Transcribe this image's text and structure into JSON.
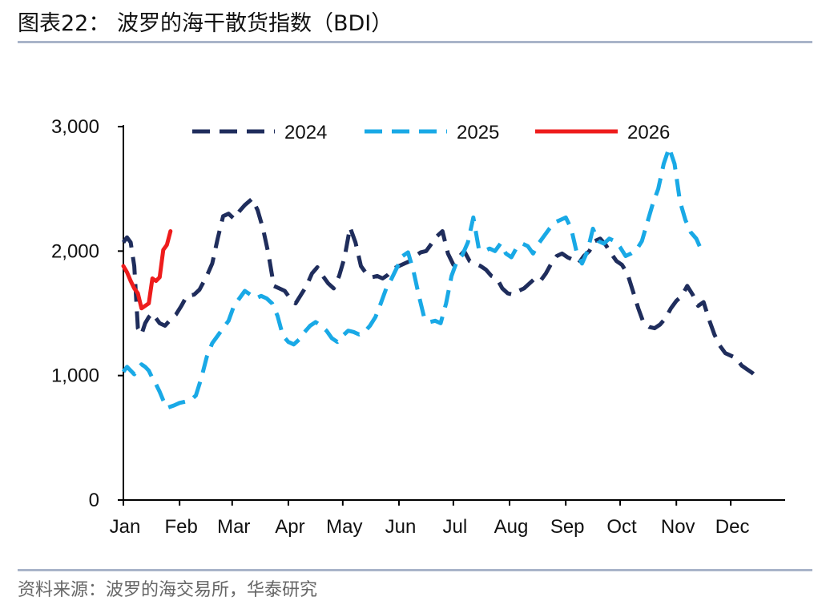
{
  "header": {
    "title": "图表22：  波罗的海干散货指数（BDI）"
  },
  "footer": {
    "source": "资料来源：波罗的海交易所，华泰研究"
  },
  "chart_data": {
    "type": "line",
    "xlabel": "",
    "ylabel": "",
    "ylim": [
      0,
      3000
    ],
    "y_ticks": [
      "0",
      "1,000",
      "2,000",
      "3,000"
    ],
    "y_tick_values": [
      0,
      1000,
      2000,
      3000
    ],
    "x_ticks": [
      "Jan",
      "Feb",
      "Mar",
      "Apr",
      "May",
      "Jun",
      "Jul",
      "Aug",
      "Sep",
      "Oct",
      "Nov",
      "Dec"
    ],
    "x_tick_days": [
      1,
      32,
      61,
      92,
      122,
      153,
      183,
      214,
      245,
      275,
      306,
      336
    ],
    "xlim_day": [
      1,
      366
    ],
    "legend_position": "top",
    "grid": false,
    "series": [
      {
        "name": "2024",
        "color": "#1f2d5c",
        "dash": "dashed",
        "points": [
          [
            1,
            2070
          ],
          [
            3,
            2110
          ],
          [
            5,
            2070
          ],
          [
            7,
            1880
          ],
          [
            9,
            1380
          ],
          [
            11,
            1330
          ],
          [
            13,
            1420
          ],
          [
            15,
            1470
          ],
          [
            17,
            1500
          ],
          [
            19,
            1460
          ],
          [
            21,
            1420
          ],
          [
            24,
            1400
          ],
          [
            27,
            1450
          ],
          [
            30,
            1490
          ],
          [
            33,
            1560
          ],
          [
            36,
            1640
          ],
          [
            40,
            1650
          ],
          [
            43,
            1690
          ],
          [
            47,
            1800
          ],
          [
            50,
            1900
          ],
          [
            53,
            2100
          ],
          [
            56,
            2280
          ],
          [
            59,
            2300
          ],
          [
            62,
            2260
          ],
          [
            65,
            2320
          ],
          [
            68,
            2370
          ],
          [
            72,
            2420
          ],
          [
            75,
            2330
          ],
          [
            78,
            2180
          ],
          [
            81,
            1980
          ],
          [
            84,
            1720
          ],
          [
            87,
            1700
          ],
          [
            90,
            1680
          ],
          [
            93,
            1620
          ],
          [
            96,
            1580
          ],
          [
            99,
            1650
          ],
          [
            102,
            1720
          ],
          [
            105,
            1820
          ],
          [
            108,
            1870
          ],
          [
            111,
            1800
          ],
          [
            114,
            1740
          ],
          [
            117,
            1700
          ],
          [
            120,
            1800
          ],
          [
            123,
            1950
          ],
          [
            126,
            2190
          ],
          [
            129,
            2070
          ],
          [
            132,
            1880
          ],
          [
            135,
            1820
          ],
          [
            138,
            1790
          ],
          [
            141,
            1800
          ],
          [
            144,
            1780
          ],
          [
            147,
            1810
          ],
          [
            150,
            1860
          ],
          [
            153,
            1880
          ],
          [
            156,
            1900
          ],
          [
            159,
            1920
          ],
          [
            162,
            1960
          ],
          [
            165,
            1990
          ],
          [
            168,
            2000
          ],
          [
            171,
            2060
          ],
          [
            174,
            2120
          ],
          [
            177,
            2160
          ],
          [
            180,
            1980
          ],
          [
            183,
            1890
          ],
          [
            186,
            1950
          ],
          [
            189,
            2000
          ],
          [
            192,
            1920
          ],
          [
            195,
            1900
          ],
          [
            198,
            1880
          ],
          [
            201,
            1850
          ],
          [
            204,
            1800
          ],
          [
            207,
            1780
          ],
          [
            210,
            1700
          ],
          [
            213,
            1660
          ],
          [
            216,
            1650
          ],
          [
            219,
            1680
          ],
          [
            222,
            1700
          ],
          [
            225,
            1740
          ],
          [
            228,
            1780
          ],
          [
            231,
            1760
          ],
          [
            234,
            1820
          ],
          [
            237,
            1900
          ],
          [
            240,
            1960
          ],
          [
            243,
            1980
          ],
          [
            246,
            1950
          ],
          [
            249,
            1930
          ],
          [
            252,
            1900
          ],
          [
            255,
            1960
          ],
          [
            258,
            2000
          ],
          [
            261,
            2080
          ],
          [
            264,
            2100
          ],
          [
            267,
            2050
          ],
          [
            270,
            1980
          ],
          [
            273,
            1920
          ],
          [
            276,
            1890
          ],
          [
            279,
            1820
          ],
          [
            282,
            1680
          ],
          [
            285,
            1540
          ],
          [
            288,
            1420
          ],
          [
            291,
            1390
          ],
          [
            294,
            1380
          ],
          [
            297,
            1410
          ],
          [
            300,
            1460
          ],
          [
            303,
            1540
          ],
          [
            306,
            1600
          ],
          [
            309,
            1640
          ],
          [
            312,
            1720
          ],
          [
            315,
            1650
          ],
          [
            318,
            1560
          ],
          [
            321,
            1590
          ],
          [
            324,
            1450
          ],
          [
            327,
            1330
          ],
          [
            330,
            1240
          ],
          [
            333,
            1180
          ],
          [
            336,
            1160
          ],
          [
            339,
            1140
          ],
          [
            342,
            1080
          ],
          [
            345,
            1050
          ],
          [
            348,
            1020
          ],
          [
            351,
            980
          ]
        ]
      },
      {
        "name": "2025",
        "color": "#19a9e6",
        "dash": "dashed",
        "points": [
          [
            1,
            1030
          ],
          [
            3,
            1070
          ],
          [
            5,
            1040
          ],
          [
            7,
            1010
          ],
          [
            9,
            1060
          ],
          [
            11,
            1090
          ],
          [
            13,
            1070
          ],
          [
            15,
            1040
          ],
          [
            17,
            980
          ],
          [
            19,
            930
          ],
          [
            21,
            870
          ],
          [
            23,
            800
          ],
          [
            25,
            740
          ],
          [
            27,
            750
          ],
          [
            29,
            760
          ],
          [
            32,
            780
          ],
          [
            35,
            790
          ],
          [
            38,
            800
          ],
          [
            41,
            840
          ],
          [
            44,
            980
          ],
          [
            47,
            1150
          ],
          [
            50,
            1260
          ],
          [
            53,
            1320
          ],
          [
            56,
            1380
          ],
          [
            59,
            1440
          ],
          [
            62,
            1560
          ],
          [
            65,
            1620
          ],
          [
            68,
            1680
          ],
          [
            71,
            1650
          ],
          [
            74,
            1620
          ],
          [
            77,
            1640
          ],
          [
            80,
            1620
          ],
          [
            83,
            1580
          ],
          [
            86,
            1480
          ],
          [
            89,
            1320
          ],
          [
            92,
            1270
          ],
          [
            95,
            1250
          ],
          [
            98,
            1290
          ],
          [
            101,
            1350
          ],
          [
            104,
            1400
          ],
          [
            107,
            1430
          ],
          [
            110,
            1400
          ],
          [
            113,
            1360
          ],
          [
            116,
            1300
          ],
          [
            119,
            1270
          ],
          [
            122,
            1320
          ],
          [
            125,
            1360
          ],
          [
            128,
            1350
          ],
          [
            131,
            1330
          ],
          [
            134,
            1350
          ],
          [
            137,
            1400
          ],
          [
            140,
            1470
          ],
          [
            143,
            1580
          ],
          [
            146,
            1700
          ],
          [
            149,
            1780
          ],
          [
            152,
            1870
          ],
          [
            155,
            1960
          ],
          [
            158,
            1990
          ],
          [
            161,
            1840
          ],
          [
            164,
            1640
          ],
          [
            167,
            1460
          ],
          [
            170,
            1430
          ],
          [
            173,
            1440
          ],
          [
            176,
            1420
          ],
          [
            179,
            1580
          ],
          [
            182,
            1800
          ],
          [
            185,
            1920
          ],
          [
            188,
            1970
          ],
          [
            191,
            2070
          ],
          [
            194,
            2270
          ],
          [
            197,
            2020
          ],
          [
            200,
            2000
          ],
          [
            203,
            2020
          ],
          [
            206,
            2000
          ],
          [
            209,
            2060
          ],
          [
            212,
            1980
          ],
          [
            215,
            1950
          ],
          [
            218,
            2030
          ],
          [
            221,
            2060
          ],
          [
            224,
            2040
          ],
          [
            227,
            1980
          ],
          [
            230,
            2060
          ],
          [
            233,
            2120
          ],
          [
            236,
            2180
          ],
          [
            239,
            2230
          ],
          [
            242,
            2250
          ],
          [
            245,
            2270
          ],
          [
            248,
            2180
          ],
          [
            251,
            1990
          ],
          [
            254,
            1900
          ],
          [
            257,
            2000
          ],
          [
            260,
            2180
          ],
          [
            263,
            2080
          ],
          [
            266,
            2060
          ],
          [
            269,
            2100
          ],
          [
            272,
            2080
          ],
          [
            275,
            2030
          ],
          [
            278,
            1960
          ],
          [
            281,
            1980
          ],
          [
            284,
            2010
          ],
          [
            287,
            2080
          ],
          [
            290,
            2230
          ],
          [
            293,
            2380
          ],
          [
            296,
            2500
          ],
          [
            299,
            2700
          ],
          [
            302,
            2830
          ],
          [
            305,
            2700
          ],
          [
            308,
            2400
          ],
          [
            311,
            2250
          ],
          [
            314,
            2150
          ],
          [
            317,
            2100
          ],
          [
            320,
            2000
          ]
        ]
      },
      {
        "name": "2026",
        "color": "#ee1c1c",
        "dash": "solid",
        "points": [
          [
            1,
            1880
          ],
          [
            3,
            1830
          ],
          [
            5,
            1760
          ],
          [
            7,
            1700
          ],
          [
            9,
            1660
          ],
          [
            11,
            1540
          ],
          [
            13,
            1560
          ],
          [
            15,
            1580
          ],
          [
            17,
            1780
          ],
          [
            19,
            1760
          ],
          [
            21,
            1790
          ],
          [
            23,
            2010
          ],
          [
            25,
            2050
          ],
          [
            27,
            2160
          ]
        ]
      }
    ]
  }
}
